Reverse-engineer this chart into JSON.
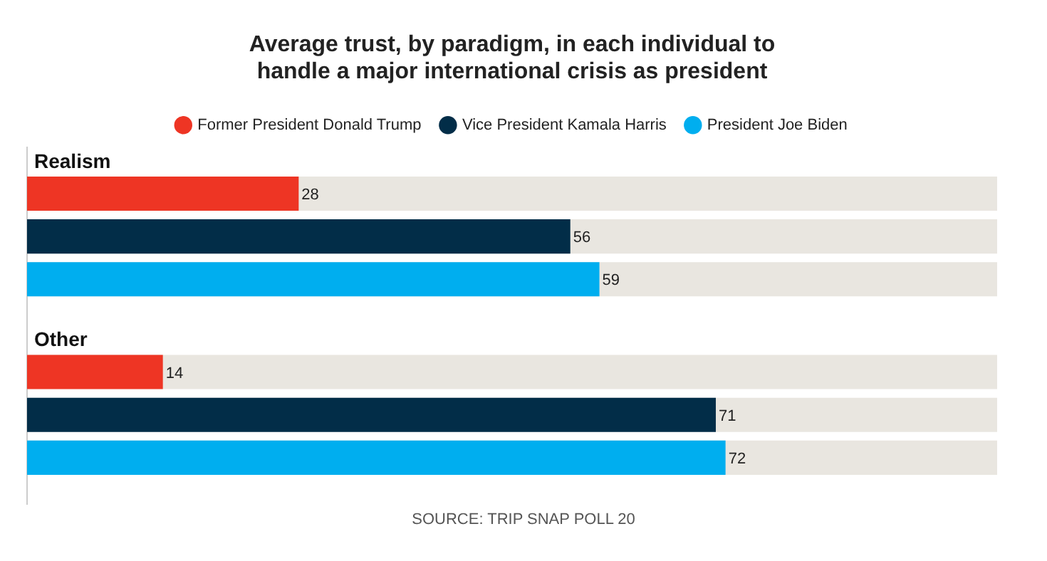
{
  "chart_data": {
    "type": "bar",
    "orientation": "horizontal",
    "title": "Average trust, by paradigm, in each individual to handle a major international crisis as president",
    "categories": [
      "Realism",
      "Other"
    ],
    "series": [
      {
        "name": "Former President Donald Trump",
        "color": "#ee3524",
        "values": [
          28,
          14
        ]
      },
      {
        "name": "Vice President Kamala Harris",
        "color": "#022d48",
        "values": [
          56,
          71
        ]
      },
      {
        "name": "President Joe Biden",
        "color": "#00aeef",
        "values": [
          59,
          72
        ]
      }
    ],
    "xlim": [
      0,
      100
    ],
    "tick_labels": "y",
    "data_labels": true,
    "legend": "top",
    "annotations": [
      "SOURCE: TRIP SNAP POLL 20"
    ]
  }
}
